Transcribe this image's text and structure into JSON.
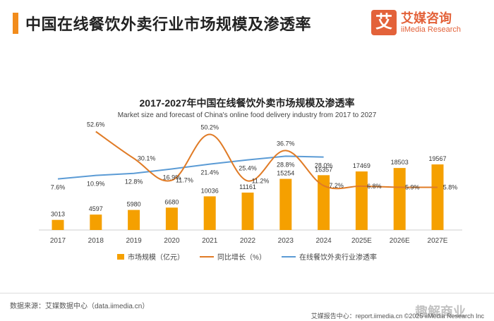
{
  "header": {
    "title": "中国在线餐饮外卖行业市场规模及渗透率"
  },
  "logo": {
    "mark": "艾",
    "name_cn": "艾媒咨询",
    "name_en": "iiMedia Research"
  },
  "colors": {
    "accent": "#f28c1c",
    "bar": "#f5a000",
    "growth_line": "#e07b26",
    "penetration_line": "#5b9bd5"
  },
  "chart_data": {
    "type": "bar",
    "title": "2017-2027年中国在线餐饮外卖市场规模及渗透率",
    "subtitle": "Market size and forecast of China's online food delivery industry from 2017 to 2027",
    "categories": [
      "2017",
      "2018",
      "2019",
      "2020",
      "2021",
      "2022",
      "2023",
      "2024",
      "2025E",
      "2026E",
      "2027E"
    ],
    "series": [
      {
        "name": "市场规模（亿元）",
        "type": "bar",
        "values": [
          3013,
          4597,
          5980,
          6680,
          10036,
          11161,
          15254,
          16357,
          17469,
          18503,
          19567
        ],
        "labels": [
          "3013",
          "4597",
          "5980",
          "6680",
          "10036",
          "11161",
          "15254",
          "16357",
          "17469",
          "18503",
          "19567"
        ]
      },
      {
        "name": "同比增长（%）",
        "type": "line",
        "values": [
          null,
          52.6,
          30.1,
          11.7,
          50.2,
          11.2,
          36.7,
          7.2,
          6.8,
          5.9,
          5.8
        ],
        "labels": [
          "",
          "52.6%",
          "30.1%",
          "11.7%",
          "50.2%",
          "11.2%",
          "36.7%",
          "7.2%",
          "6.8%",
          "5.9%",
          "5.8%"
        ]
      },
      {
        "name": "在线餐饮外卖行业渗透率",
        "type": "line",
        "values": [
          7.6,
          10.9,
          12.8,
          16.9,
          21.4,
          25.4,
          28.8,
          28.0,
          null,
          null,
          null
        ],
        "labels": [
          "7.6%",
          "10.9%",
          "12.8%",
          "16.9%",
          "21.4%",
          "25.4%",
          "28.8%",
          "28.0%",
          "",
          "",
          ""
        ]
      }
    ],
    "ylim_bar": [
      0,
      32000
    ],
    "ylim_growth": [
      -30,
      60
    ],
    "ylim_penetration": [
      -40,
      60
    ],
    "grid": false,
    "legend": "bottom"
  },
  "footer": {
    "source": "数据来源：艾媒数据中心（data.iimedia.cn）",
    "report": "艾媒报告中心：report.iimedia.cn     ©2025  iiMedia Research Inc",
    "watermark": "趣解商业"
  }
}
